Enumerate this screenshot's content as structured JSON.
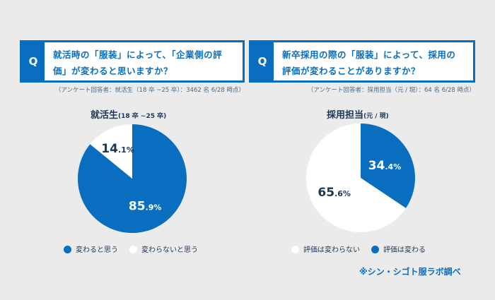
{
  "questions": [
    {
      "label": "Q",
      "text": "就活時の「服装」によって、「企業側の評価」が変わると思いますか？",
      "note": "（アンケート回答者：就活生（18 卒 ~25 卒）：3462 名 6/28 時点）"
    },
    {
      "label": "Q",
      "text": "新卒採用の際の「服装」によって、採用の評価が変わることがありますか？",
      "note": "（アンケート回答者：採用担当（元 / 現）：64 名 6/28 時点）"
    }
  ],
  "colors": {
    "blue": "#0a6ec0",
    "white": "#ffffff",
    "dark": "#1d3557"
  },
  "chart_data": [
    {
      "type": "pie",
      "title": "就活生",
      "subtitle": "(18 卒 ~25 卒)",
      "slices": [
        {
          "label": "変わると思う",
          "value": 85.9,
          "color": "#0a6ec0",
          "display": "85.9%"
        },
        {
          "label": "変わらないと思う",
          "value": 14.1,
          "color": "#ffffff",
          "display": "14.1%"
        }
      ],
      "legend": [
        "変わると思う",
        "変わらないと思う"
      ]
    },
    {
      "type": "pie",
      "title": "採用担当",
      "subtitle": "(元 / 現)",
      "slices": [
        {
          "label": "評価は変わる",
          "value": 34.4,
          "color": "#0a6ec0",
          "display": "34.4%"
        },
        {
          "label": "評価は変わらない",
          "value": 65.6,
          "color": "#ffffff",
          "display": "65.6%"
        }
      ],
      "legend": [
        "評価は変わらない",
        "評価は変わる"
      ]
    }
  ],
  "credit": "※シン・シゴト服ラボ調べ"
}
